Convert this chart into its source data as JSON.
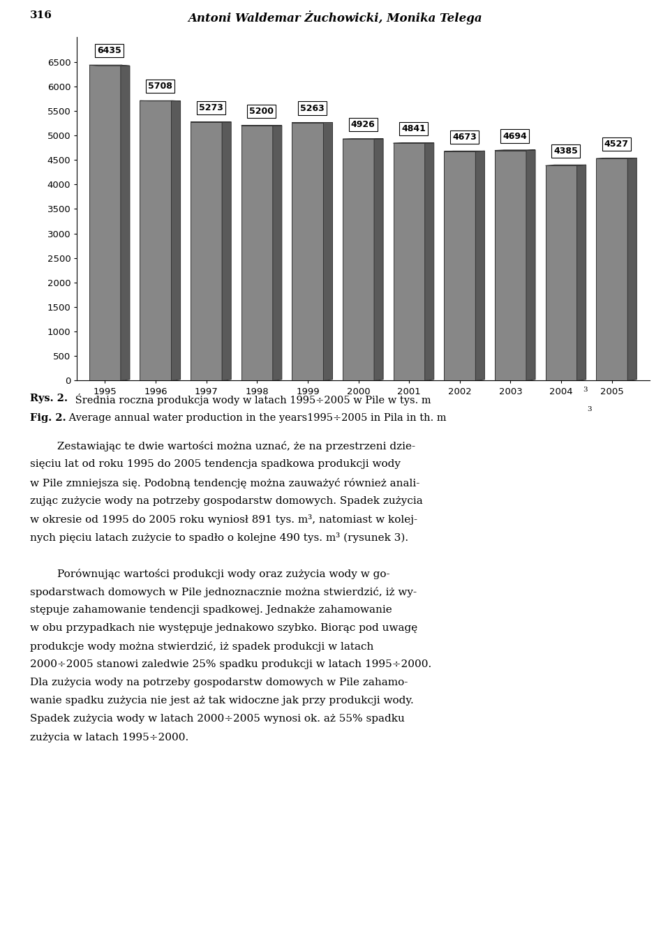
{
  "page_number": "316",
  "header_title": "Antoni Waldemar Żuchowicki, Monika Telega",
  "years": [
    1995,
    1996,
    1997,
    1998,
    1999,
    2000,
    2001,
    2002,
    2003,
    2004,
    2005
  ],
  "values": [
    6435,
    5708,
    5273,
    5200,
    5263,
    4926,
    4841,
    4673,
    4694,
    4385,
    4527
  ],
  "bar_face_color": "#878787",
  "bar_right_color": "#5a5a5a",
  "bar_top_color": "#aaaaaa",
  "bar_edge_color": "#333333",
  "yticks": [
    0,
    500,
    1000,
    1500,
    2000,
    2500,
    3000,
    3500,
    4000,
    4500,
    5000,
    5500,
    6000,
    6500
  ],
  "ylim": [
    0,
    7000
  ],
  "caption_rys": "Rys. 2.",
  "caption_rys_rest": " Średnia roczna produkcja wody w latach 1995÷2005 w Pile w tys. m",
  "caption_fig": "Fig. 2.",
  "caption_fig_rest": " Average annual water production in the years1995÷2005 in Pila in th. m",
  "para1_line1": "        Zestawiając te dwie wartości można uznać, że na przestrzeni dzie-",
  "para1_line2": "sięciu lat od roku 1995 do 2005 tendencja spadkowa produkcji wody",
  "para1_line3": "w Pile zmniejsza się. Podobną tendencję można zauważyć również anali-",
  "para1_line4": "zując zużycie wody na potrzeby gospodarstw domowych. Spadek zużycia",
  "para1_line5": "w okresie od 1995 do 2005 roku wyniosł 891 tys. m³, natomiast w kolej-",
  "para1_line6": "nych pięciu latach zużycie to spadło o kolejne 490 tys. m³ (rysunek 3).",
  "para2_line1": "        Porównując wartości produkcji wody oraz zużycia wody w go-",
  "para2_line2": "spodarstwach domowych w Pile jednoznacznie można stwierdzić, iż wy-",
  "para2_line3": "stępuje zahamowanie tendencji spadkowej. Jednakże zahamowanie",
  "para2_line4": "w obu przypadkach nie występuje jednakowo szybko. Biorąc pod uwagę",
  "para2_line5": "produkcje wody można stwierdzić, iż spadek produkcji w latach",
  "para2_line6": "2000÷2005 stanowi zaledwie 25% spadku produkcji w latach 1995÷2000.",
  "para2_line7": "Dla zużycia wody na potrzeby gospodarstw domowych w Pile zahamo-",
  "para2_line8": "wanie spadku zużycia nie jest aż tak widoczne jak przy produkcji wody.",
  "para2_line9": "Spadek zużycia wody w latach 2000÷2005 wynosi ok. aż 55% spadku",
  "para2_line10": "zużycia w latach 1995÷2000."
}
